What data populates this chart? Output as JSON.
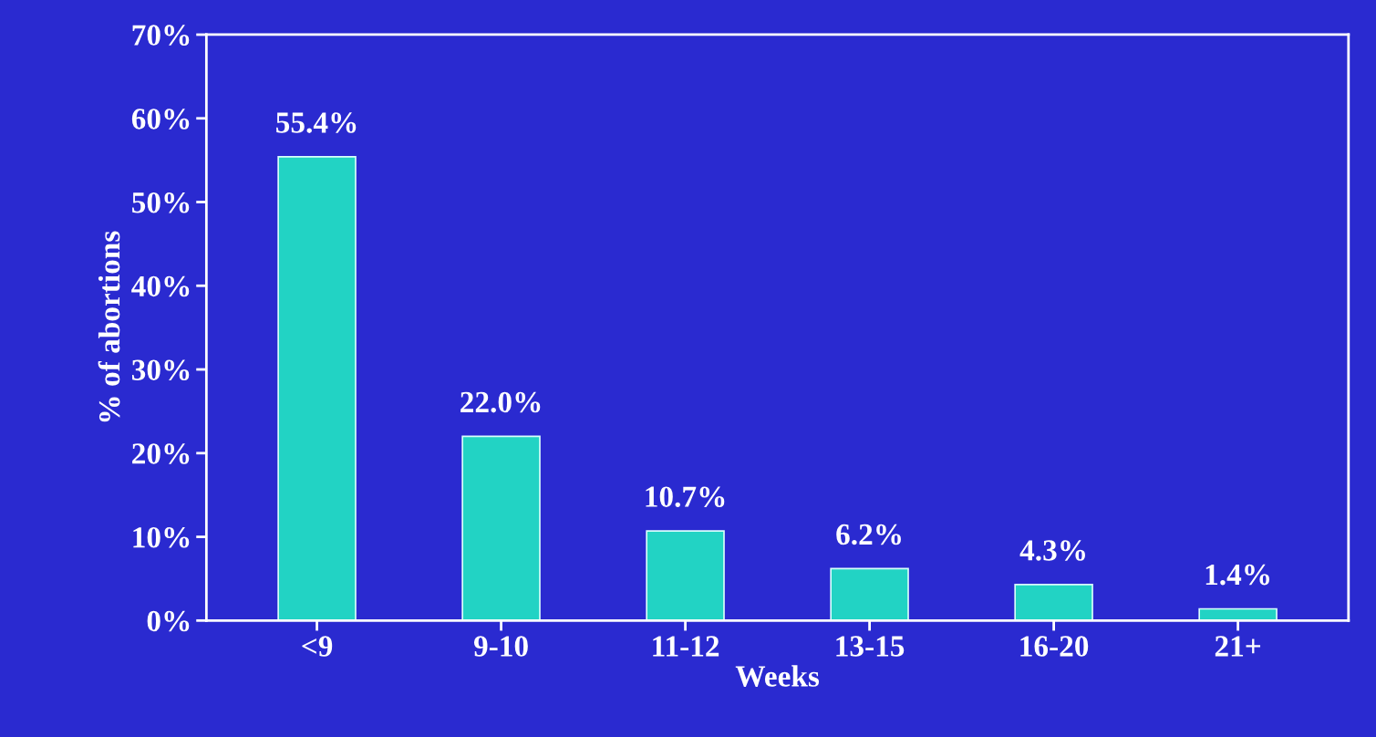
{
  "chart_data": {
    "type": "bar",
    "xlabel": "Weeks",
    "ylabel": "% of abortions",
    "categories": [
      "<9",
      "9-10",
      "11-12",
      "13-15",
      "16-20",
      "21+"
    ],
    "values": [
      55.4,
      22.0,
      10.7,
      6.2,
      4.3,
      1.4
    ],
    "value_labels": [
      "55.4%",
      "22.0%",
      "10.7%",
      "6.2%",
      "4.3%",
      "1.4%"
    ],
    "color": "#22d3c4",
    "ylim": [
      0,
      70
    ],
    "yticks": [
      {
        "value": 0,
        "label": "0%"
      },
      {
        "value": 10,
        "label": "10%"
      },
      {
        "value": 20,
        "label": "20%"
      },
      {
        "value": 30,
        "label": "30%"
      },
      {
        "value": 40,
        "label": "40%"
      },
      {
        "value": 50,
        "label": "50%"
      },
      {
        "value": 60,
        "label": "60%"
      },
      {
        "value": 70,
        "label": "70%"
      }
    ],
    "grid": false
  }
}
